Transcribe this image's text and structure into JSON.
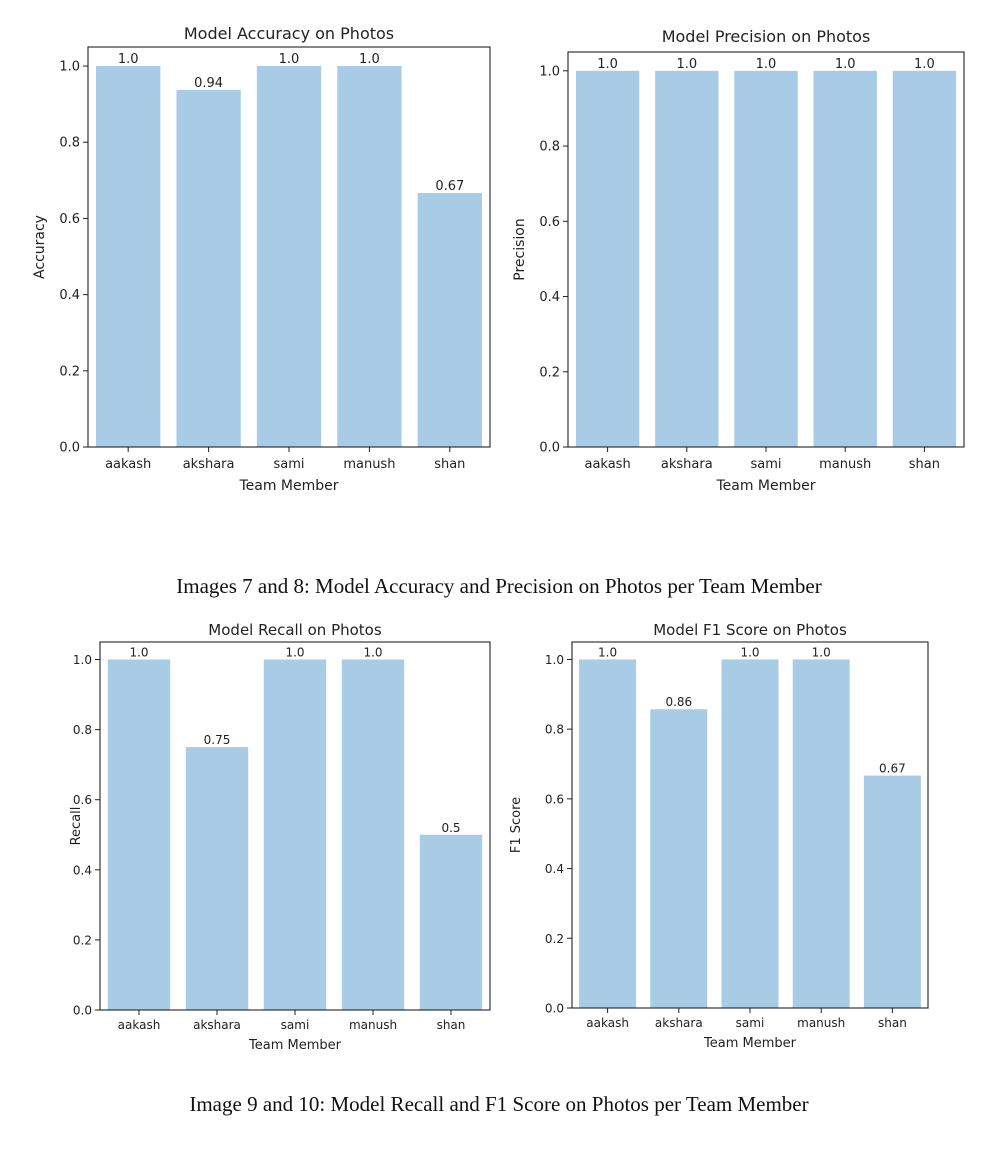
{
  "captions": [
    "Images 7 and 8: Model Accuracy and Precision on Photos per Team Member",
    "Image 9 and 10: Model Recall and F1 Score on Photos per Team Member"
  ],
  "colors": {
    "bar": "#a8cbe6",
    "axis": "#222222"
  },
  "chart_data": [
    {
      "type": "bar",
      "title": "Model Accuracy on Photos",
      "xlabel": "Team Member",
      "ylabel": "Accuracy",
      "categories": [
        "aakash",
        "akshara",
        "sami",
        "manush",
        "shan"
      ],
      "values": [
        1.0,
        0.9375,
        1.0,
        1.0,
        0.6667
      ],
      "value_labels": [
        "1.0",
        "0.94",
        "1.0",
        "1.0",
        "0.67"
      ],
      "yticks": [
        "0.0",
        "0.2",
        "0.4",
        "0.6",
        "0.8",
        "1.0"
      ],
      "ylim": [
        0,
        1.05
      ],
      "grid": false
    },
    {
      "type": "bar",
      "title": "Model Precision on Photos",
      "xlabel": "Team Member",
      "ylabel": "Precision",
      "categories": [
        "aakash",
        "akshara",
        "sami",
        "manush",
        "shan"
      ],
      "values": [
        1.0,
        1.0,
        1.0,
        1.0,
        1.0
      ],
      "value_labels": [
        "1.0",
        "1.0",
        "1.0",
        "1.0",
        "1.0"
      ],
      "yticks": [
        "0.0",
        "0.2",
        "0.4",
        "0.6",
        "0.8",
        "1.0"
      ],
      "ylim": [
        0,
        1.05
      ],
      "grid": false
    },
    {
      "type": "bar",
      "title": "Model Recall on Photos",
      "xlabel": "Team Member",
      "ylabel": "Recall",
      "categories": [
        "aakash",
        "akshara",
        "sami",
        "manush",
        "shan"
      ],
      "values": [
        1.0,
        0.75,
        1.0,
        1.0,
        0.5
      ],
      "value_labels": [
        "1.0",
        "0.75",
        "1.0",
        "1.0",
        "0.5"
      ],
      "yticks": [
        "0.0",
        "0.2",
        "0.4",
        "0.6",
        "0.8",
        "1.0"
      ],
      "ylim": [
        0,
        1.05
      ],
      "grid": false
    },
    {
      "type": "bar",
      "title": "Model F1 Score on Photos",
      "xlabel": "Team Member",
      "ylabel": "F1 Score",
      "categories": [
        "aakash",
        "akshara",
        "sami",
        "manush",
        "shan"
      ],
      "values": [
        1.0,
        0.8571,
        1.0,
        1.0,
        0.6667
      ],
      "value_labels": [
        "1.0",
        "0.86",
        "1.0",
        "1.0",
        "0.67"
      ],
      "yticks": [
        "0.0",
        "0.2",
        "0.4",
        "0.6",
        "0.8",
        "1.0"
      ],
      "ylim": [
        0,
        1.05
      ],
      "grid": false
    }
  ]
}
